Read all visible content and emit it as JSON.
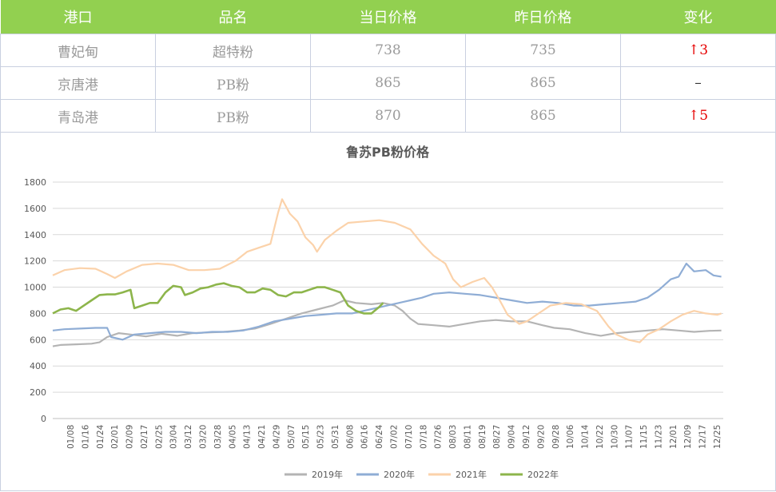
{
  "table": {
    "headers": [
      "港口",
      "品名",
      "当日价格",
      "昨日价格",
      "变化"
    ],
    "rows": [
      {
        "port": "曹妃甸",
        "product": "超特粉",
        "today": "738",
        "yesterday": "735",
        "change": "↑3"
      },
      {
        "port": "京唐港",
        "product": "PB粉",
        "today": "865",
        "yesterday": "865",
        "change": "–"
      },
      {
        "port": "青岛港",
        "product": "PB粉",
        "today": "870",
        "yesterday": "865",
        "change": "↑5"
      }
    ]
  },
  "colors": {
    "header_bg": "#92d050",
    "up": "#e60000",
    "s2019": "#b4b4b4",
    "s2020": "#8fadd5",
    "s2021": "#fbd2aa",
    "s2022": "#8db54b"
  },
  "chart_data": {
    "type": "line",
    "title": "鲁苏PB粉价格",
    "xlabel": "",
    "ylabel": "",
    "ylim": [
      0,
      1800
    ],
    "yticks": [
      "0",
      "200",
      "400",
      "600",
      "800",
      "1000",
      "1200",
      "1400",
      "1600",
      "1800"
    ],
    "x_tick_labels": [
      "01/08",
      "01/16",
      "01/24",
      "02/01",
      "02/09",
      "02/17",
      "02/25",
      "03/04",
      "03/12",
      "03/20",
      "03/28",
      "04/05",
      "04/13",
      "04/21",
      "04/29",
      "05/07",
      "05/15",
      "05/23",
      "05/31",
      "06/08",
      "06/16",
      "06/24",
      "07/02",
      "07/10",
      "07/18",
      "07/26",
      "08/03",
      "08/11",
      "08/19",
      "08/27",
      "09/04",
      "09/12",
      "09/20",
      "09/28",
      "10/06",
      "10/14",
      "10/22",
      "10/30",
      "11/07",
      "11/15",
      "11/23",
      "12/01",
      "12/09",
      "12/17",
      "12/25"
    ],
    "legend_position": "bottom",
    "grid": true,
    "series": [
      {
        "name": "2019年",
        "color": "#b4b4b4",
        "points": [
          [
            0,
            550
          ],
          [
            4,
            560
          ],
          [
            12,
            565
          ],
          [
            20,
            570
          ],
          [
            24,
            580
          ],
          [
            28,
            620
          ],
          [
            34,
            650
          ],
          [
            40,
            640
          ],
          [
            48,
            625
          ],
          [
            56,
            645
          ],
          [
            64,
            630
          ],
          [
            72,
            650
          ],
          [
            80,
            655
          ],
          [
            88,
            660
          ],
          [
            96,
            670
          ],
          [
            104,
            685
          ],
          [
            112,
            720
          ],
          [
            120,
            760
          ],
          [
            128,
            800
          ],
          [
            136,
            830
          ],
          [
            144,
            860
          ],
          [
            150,
            900
          ],
          [
            156,
            880
          ],
          [
            164,
            870
          ],
          [
            170,
            880
          ],
          [
            176,
            860
          ],
          [
            180,
            820
          ],
          [
            184,
            760
          ],
          [
            188,
            720
          ],
          [
            196,
            710
          ],
          [
            204,
            700
          ],
          [
            212,
            720
          ],
          [
            220,
            740
          ],
          [
            228,
            750
          ],
          [
            236,
            740
          ],
          [
            244,
            740
          ],
          [
            252,
            710
          ],
          [
            258,
            690
          ],
          [
            266,
            680
          ],
          [
            274,
            650
          ],
          [
            282,
            630
          ],
          [
            290,
            650
          ],
          [
            298,
            660
          ],
          [
            306,
            670
          ],
          [
            314,
            680
          ],
          [
            322,
            670
          ],
          [
            330,
            660
          ],
          [
            338,
            668
          ],
          [
            344,
            670
          ]
        ]
      },
      {
        "name": "2020年",
        "color": "#8fadd5",
        "points": [
          [
            0,
            670
          ],
          [
            6,
            680
          ],
          [
            14,
            685
          ],
          [
            22,
            690
          ],
          [
            28,
            690
          ],
          [
            30,
            620
          ],
          [
            36,
            600
          ],
          [
            42,
            640
          ],
          [
            50,
            650
          ],
          [
            58,
            660
          ],
          [
            66,
            660
          ],
          [
            74,
            650
          ],
          [
            82,
            660
          ],
          [
            90,
            660
          ],
          [
            98,
            670
          ],
          [
            106,
            700
          ],
          [
            114,
            740
          ],
          [
            122,
            760
          ],
          [
            130,
            780
          ],
          [
            138,
            790
          ],
          [
            146,
            800
          ],
          [
            154,
            800
          ],
          [
            160,
            820
          ],
          [
            166,
            840
          ],
          [
            172,
            860
          ],
          [
            178,
            880
          ],
          [
            184,
            900
          ],
          [
            190,
            920
          ],
          [
            196,
            950
          ],
          [
            204,
            960
          ],
          [
            212,
            950
          ],
          [
            220,
            940
          ],
          [
            228,
            920
          ],
          [
            236,
            900
          ],
          [
            244,
            880
          ],
          [
            252,
            890
          ],
          [
            260,
            880
          ],
          [
            268,
            860
          ],
          [
            276,
            860
          ],
          [
            284,
            870
          ],
          [
            292,
            880
          ],
          [
            300,
            890
          ],
          [
            306,
            920
          ],
          [
            312,
            980
          ],
          [
            318,
            1060
          ],
          [
            322,
            1080
          ],
          [
            326,
            1180
          ],
          [
            330,
            1120
          ],
          [
            336,
            1130
          ],
          [
            340,
            1090
          ],
          [
            344,
            1080
          ]
        ]
      },
      {
        "name": "2021年",
        "color": "#fbd2aa",
        "points": [
          [
            0,
            1090
          ],
          [
            6,
            1130
          ],
          [
            14,
            1145
          ],
          [
            22,
            1140
          ],
          [
            28,
            1100
          ],
          [
            32,
            1070
          ],
          [
            38,
            1120
          ],
          [
            46,
            1170
          ],
          [
            54,
            1180
          ],
          [
            62,
            1170
          ],
          [
            70,
            1130
          ],
          [
            78,
            1130
          ],
          [
            86,
            1140
          ],
          [
            94,
            1200
          ],
          [
            100,
            1270
          ],
          [
            106,
            1300
          ],
          [
            112,
            1330
          ],
          [
            116,
            1570
          ],
          [
            118,
            1670
          ],
          [
            122,
            1560
          ],
          [
            126,
            1500
          ],
          [
            130,
            1380
          ],
          [
            134,
            1320
          ],
          [
            136,
            1270
          ],
          [
            140,
            1360
          ],
          [
            146,
            1430
          ],
          [
            152,
            1490
          ],
          [
            160,
            1500
          ],
          [
            168,
            1510
          ],
          [
            176,
            1490
          ],
          [
            184,
            1440
          ],
          [
            190,
            1330
          ],
          [
            196,
            1240
          ],
          [
            202,
            1180
          ],
          [
            206,
            1060
          ],
          [
            210,
            1000
          ],
          [
            216,
            1040
          ],
          [
            222,
            1070
          ],
          [
            226,
            1000
          ],
          [
            230,
            900
          ],
          [
            234,
            790
          ],
          [
            240,
            720
          ],
          [
            244,
            740
          ],
          [
            250,
            800
          ],
          [
            256,
            860
          ],
          [
            264,
            880
          ],
          [
            272,
            870
          ],
          [
            280,
            820
          ],
          [
            286,
            700
          ],
          [
            290,
            640
          ],
          [
            296,
            600
          ],
          [
            302,
            580
          ],
          [
            306,
            640
          ],
          [
            312,
            680
          ],
          [
            318,
            740
          ],
          [
            324,
            790
          ],
          [
            330,
            820
          ],
          [
            336,
            800
          ],
          [
            342,
            790
          ],
          [
            344,
            800
          ]
        ]
      },
      {
        "name": "2022年",
        "color": "#8db54b",
        "points": [
          [
            0,
            800
          ],
          [
            4,
            830
          ],
          [
            8,
            840
          ],
          [
            12,
            820
          ],
          [
            16,
            860
          ],
          [
            20,
            900
          ],
          [
            24,
            940
          ],
          [
            28,
            945
          ],
          [
            32,
            945
          ],
          [
            36,
            960
          ],
          [
            40,
            980
          ],
          [
            42,
            840
          ],
          [
            46,
            860
          ],
          [
            50,
            880
          ],
          [
            54,
            880
          ],
          [
            58,
            960
          ],
          [
            62,
            1010
          ],
          [
            66,
            1000
          ],
          [
            68,
            940
          ],
          [
            72,
            960
          ],
          [
            76,
            990
          ],
          [
            80,
            1000
          ],
          [
            84,
            1020
          ],
          [
            88,
            1030
          ],
          [
            92,
            1010
          ],
          [
            96,
            1000
          ],
          [
            100,
            960
          ],
          [
            104,
            960
          ],
          [
            108,
            990
          ],
          [
            112,
            980
          ],
          [
            116,
            940
          ],
          [
            120,
            930
          ],
          [
            124,
            960
          ],
          [
            128,
            960
          ],
          [
            132,
            980
          ],
          [
            136,
            1000
          ],
          [
            140,
            1000
          ],
          [
            144,
            980
          ],
          [
            148,
            960
          ],
          [
            152,
            860
          ],
          [
            156,
            820
          ],
          [
            160,
            800
          ],
          [
            164,
            800
          ],
          [
            168,
            850
          ],
          [
            170,
            880
          ]
        ]
      }
    ]
  },
  "legend": {
    "items": [
      "2019年",
      "2020年",
      "2021年",
      "2022年"
    ]
  }
}
